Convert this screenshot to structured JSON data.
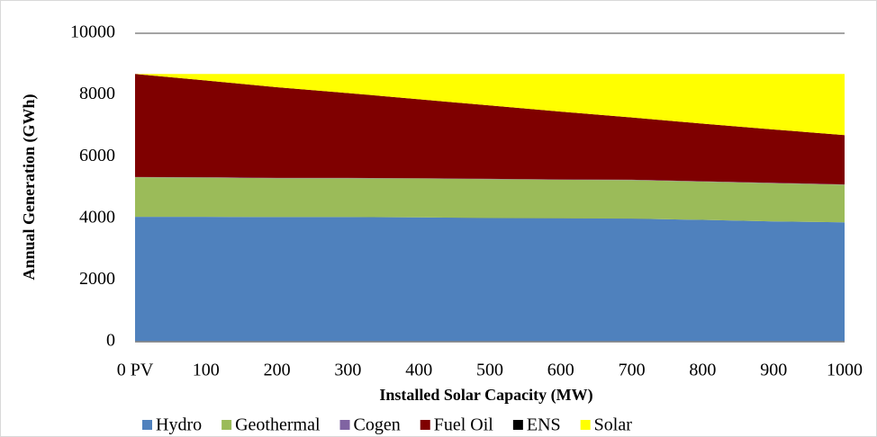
{
  "chart_data": {
    "type": "stacked_area",
    "xlabel": "Installed Solar Capacity (MW)",
    "ylabel": "Annual Generation (GWh)",
    "categories": [
      "0 PV",
      "100",
      "200",
      "300",
      "400",
      "500",
      "600",
      "700",
      "800",
      "900",
      "1000"
    ],
    "series": [
      {
        "name": "Hydro",
        "color": "#4f81bd",
        "values": [
          4050,
          4050,
          4040,
          4040,
          4030,
          4010,
          4000,
          3990,
          3950,
          3900,
          3870
        ]
      },
      {
        "name": "Geothermal",
        "color": "#9bbb59",
        "values": [
          1280,
          1270,
          1260,
          1260,
          1260,
          1260,
          1250,
          1250,
          1240,
          1240,
          1220
        ]
      },
      {
        "name": "Cogen",
        "color": "#8064a2",
        "values": [
          10,
          10,
          10,
          10,
          10,
          10,
          10,
          10,
          10,
          10,
          10
        ]
      },
      {
        "name": "Fuel Oil",
        "color": "#7f0000",
        "values": [
          3340,
          3140,
          2940,
          2750,
          2560,
          2380,
          2200,
          2020,
          1870,
          1730,
          1600
        ]
      },
      {
        "name": "ENS",
        "color": "#000000",
        "values": [
          0,
          0,
          0,
          0,
          0,
          0,
          0,
          0,
          0,
          0,
          0
        ]
      },
      {
        "name": "Solar",
        "color": "#ffff00",
        "values": [
          0,
          210,
          430,
          620,
          820,
          1020,
          1220,
          1410,
          1610,
          1800,
          1980
        ]
      }
    ],
    "ylim": [
      0,
      10000
    ],
    "yticks": [
      0,
      2000,
      4000,
      6000,
      8000,
      10000
    ],
    "grid": true,
    "legend": "bottom"
  }
}
